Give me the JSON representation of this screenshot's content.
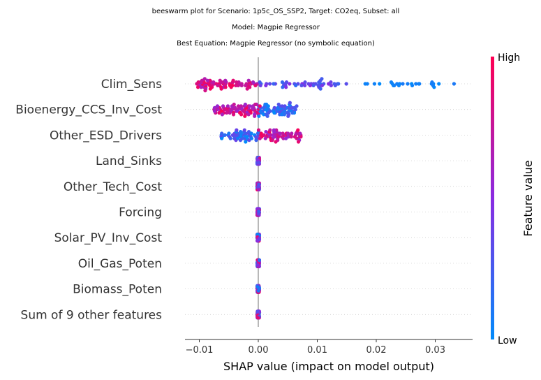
{
  "chart_data": {
    "type": "scatter",
    "subtype": "beeswarm",
    "titles": [
      "beeswarm plot for Scenario: 1p5c_OS_SSP2, Target: CO2eq, Subset: all",
      "Model: Magpie Regressor",
      "Best Equation: Magpie Regressor (no symbolic equation)"
    ],
    "xlabel": "SHAP value (impact on model output)",
    "xlim": [
      -0.0125,
      0.0365
    ],
    "xticks": [
      -0.01,
      0.0,
      0.01,
      0.02,
      0.03
    ],
    "xtick_labels": [
      "−0.01",
      "0.00",
      "0.01",
      "0.02",
      "0.03"
    ],
    "features": [
      "Clim_Sens",
      "Bioenergy_CCS_Inv_Cost",
      "Other_ESD_Drivers",
      "Land_Sinks",
      "Other_Tech_Cost",
      "Forcing",
      "Solar_PV_Inv_Cost",
      "Oil_Gas_Poten",
      "Biomass_Poten",
      "Sum of 9 other features"
    ],
    "colorbar": {
      "label": "Feature value",
      "high_label": "High",
      "low_label": "Low",
      "high_color": "#ff0052",
      "low_color": "#008bfb"
    },
    "grid": "horizontal dotted",
    "zero_line": true,
    "series": [
      {
        "feature": "Clim_Sens",
        "x_range": [
          -0.0105,
          0.034
        ],
        "low_value_side": "positive",
        "points": 150
      },
      {
        "feature": "Bioenergy_CCS_Inv_Cost",
        "x_range": [
          -0.0075,
          0.0068
        ],
        "low_value_side": "positive",
        "points": 150
      },
      {
        "feature": "Other_ESD_Drivers",
        "x_range": [
          -0.0065,
          0.0075
        ],
        "low_value_side": "negative",
        "points": 120
      },
      {
        "feature": "Land_Sinks",
        "x_range": [
          -0.0003,
          0.0003
        ],
        "points": 90
      },
      {
        "feature": "Other_Tech_Cost",
        "x_range": [
          -0.0003,
          0.0003
        ],
        "points": 90
      },
      {
        "feature": "Forcing",
        "x_range": [
          -0.0003,
          0.0003
        ],
        "points": 90
      },
      {
        "feature": "Solar_PV_Inv_Cost",
        "x_range": [
          -0.0003,
          0.0003
        ],
        "points": 90
      },
      {
        "feature": "Oil_Gas_Poten",
        "x_range": [
          -0.0003,
          0.0003
        ],
        "points": 90
      },
      {
        "feature": "Biomass_Poten",
        "x_range": [
          -0.0003,
          0.0003
        ],
        "points": 90
      },
      {
        "feature": "Sum of 9 other features",
        "x_range": [
          -0.0003,
          0.0003
        ],
        "points": 90
      }
    ]
  }
}
